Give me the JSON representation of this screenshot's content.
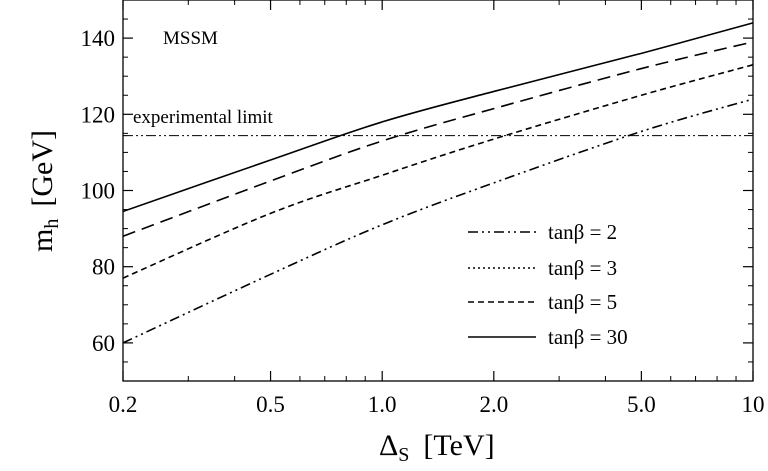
{
  "chart_data": {
    "type": "line",
    "x_scale": "log",
    "xlabel": "Δ",
    "xlabel_sub": "S",
    "xlabel_unit": "[TeV]",
    "ylabel": "m",
    "ylabel_sub": "h",
    "ylabel_unit": "[GeV]",
    "xlim": [
      0.2,
      10
    ],
    "ylim": [
      50,
      150
    ],
    "x_ticks": [
      0.2,
      0.5,
      1.0,
      2.0,
      5.0,
      10
    ],
    "x_tick_labels": [
      "0.2",
      "0.5",
      "1.0",
      "2.0",
      "5.0",
      "10"
    ],
    "y_ticks": [
      60,
      80,
      100,
      120,
      140
    ],
    "y_tick_labels": [
      "60",
      "80",
      "100",
      "120",
      "140"
    ],
    "annotations": {
      "model": "MSSM",
      "limit_label": "experimental limit"
    },
    "experimental_limit": 114.4,
    "grid": false,
    "legend_position": "bottom-right",
    "series": [
      {
        "name": "tanβ = 2",
        "dash": "dash-dot-dot",
        "x": [
          0.2,
          0.5,
          1.0,
          2.0,
          5.0,
          10
        ],
        "y": [
          60,
          78,
          91,
          102,
          115.5,
          124
        ]
      },
      {
        "name": "tanβ = 3",
        "dash": "dotted",
        "x": [
          0.2,
          0.5,
          1.0,
          2.0,
          5.0,
          10
        ],
        "y": [
          null,
          null,
          null,
          null,
          null,
          null
        ]
      },
      {
        "name": "tanβ = 5",
        "dash": "short-dash",
        "x": [
          0.2,
          0.5,
          1.0,
          2.0,
          5.0,
          10
        ],
        "y": [
          77,
          94,
          104,
          113.5,
          125,
          133
        ]
      },
      {
        "name": "tanβ = 30",
        "dash": "solid",
        "x": [
          0.2,
          0.5,
          1.0,
          2.0,
          5.0,
          10
        ],
        "y": [
          94.5,
          108,
          118,
          126,
          136,
          144
        ]
      }
    ],
    "extra_curve": {
      "dash": "long-dash",
      "x": [
        0.2,
        0.5,
        1.0,
        2.0,
        5.0,
        10
      ],
      "y": [
        88,
        102.5,
        113,
        121.5,
        132,
        139
      ]
    }
  }
}
